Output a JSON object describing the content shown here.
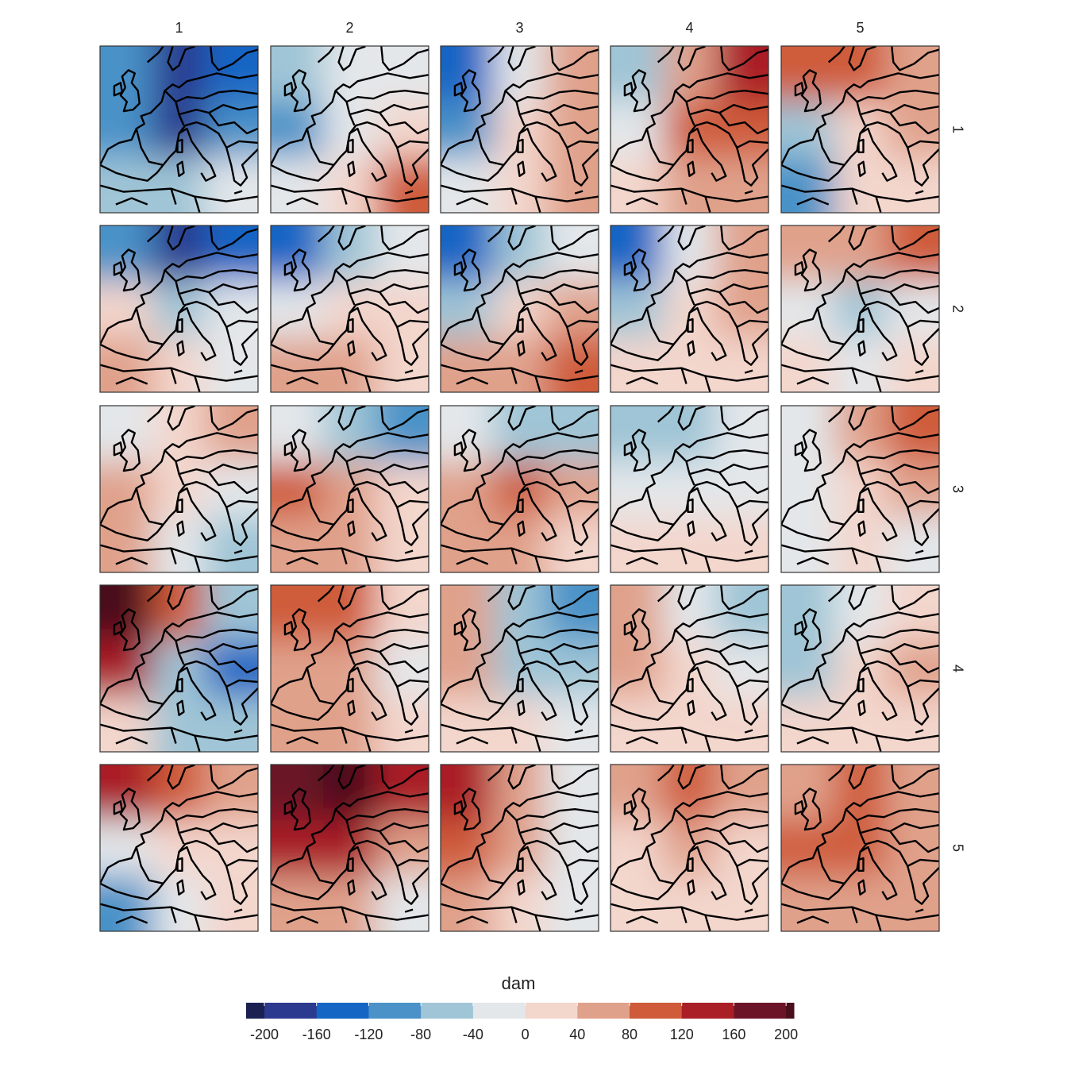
{
  "chart_data": {
    "type": "facet-map",
    "columns": [
      1,
      2,
      3,
      4,
      5
    ],
    "rows": [
      1,
      2,
      3,
      4,
      5
    ],
    "fields": [
      [
        -120,
        -200,
        -160,
        -120,
        -180,
        -100,
        -60,
        -60,
        -20
      ],
      [
        -60,
        -40,
        -20,
        -120,
        -40,
        20,
        -20,
        20,
        80
      ],
      [
        -140,
        -40,
        40,
        -100,
        20,
        40,
        -20,
        20,
        40
      ],
      [
        -60,
        60,
        130,
        -40,
        80,
        80,
        20,
        60,
        40
      ],
      [
        100,
        80,
        60,
        -60,
        20,
        40,
        -100,
        10,
        20
      ],
      [
        -100,
        -180,
        -160,
        20,
        -60,
        -40,
        40,
        20,
        -20
      ],
      [
        -140,
        -60,
        -20,
        -40,
        0,
        20,
        40,
        60,
        20
      ],
      [
        -150,
        -80,
        -40,
        -60,
        0,
        40,
        40,
        70,
        90
      ],
      [
        -140,
        -20,
        60,
        -60,
        20,
        40,
        20,
        20,
        20
      ],
      [
        40,
        60,
        100,
        -20,
        -60,
        -20,
        20,
        -20,
        20
      ],
      [
        -40,
        20,
        60,
        60,
        20,
        -20,
        40,
        -20,
        -60
      ],
      [
        -20,
        -60,
        -100,
        100,
        60,
        20,
        60,
        40,
        20
      ],
      [
        -40,
        -60,
        -80,
        60,
        100,
        40,
        40,
        60,
        30
      ],
      [
        -80,
        -80,
        -40,
        -20,
        -20,
        -20,
        10,
        10,
        0
      ],
      [
        -20,
        40,
        100,
        -10,
        20,
        40,
        -10,
        10,
        -20
      ],
      [
        200,
        80,
        -80,
        140,
        -60,
        -160,
        0,
        -60,
        -80
      ],
      [
        100,
        100,
        20,
        60,
        40,
        -40,
        40,
        60,
        10
      ],
      [
        60,
        -80,
        -100,
        60,
        -60,
        -60,
        20,
        0,
        -10
      ],
      [
        50,
        -40,
        -60,
        60,
        20,
        -40,
        20,
        20,
        20
      ],
      [
        -60,
        -40,
        20,
        -60,
        20,
        60,
        20,
        20,
        20
      ],
      [
        120,
        100,
        60,
        -20,
        30,
        20,
        -100,
        -30,
        0
      ],
      [
        180,
        200,
        140,
        140,
        120,
        60,
        60,
        40,
        -40
      ],
      [
        140,
        60,
        -20,
        80,
        40,
        -20,
        40,
        10,
        -10
      ],
      [
        60,
        80,
        60,
        30,
        40,
        30,
        10,
        10,
        20
      ],
      [
        60,
        80,
        60,
        100,
        100,
        60,
        60,
        40,
        40
      ]
    ],
    "colorbar": {
      "title": "dam",
      "ticks": [
        -200,
        -160,
        -120,
        -80,
        -40,
        0,
        40,
        80,
        120,
        160,
        200
      ],
      "lim": [
        -214,
        206
      ],
      "colors": [
        "#1c2050",
        "#2b3a8e",
        "#1565c4",
        "#4a92c8",
        "#9fc5d6",
        "#e3e7ea",
        "#f3d6cc",
        "#e0a18b",
        "#cf5b3b",
        "#aa1e26",
        "#6b1428",
        "#4a0e1c"
      ]
    }
  }
}
